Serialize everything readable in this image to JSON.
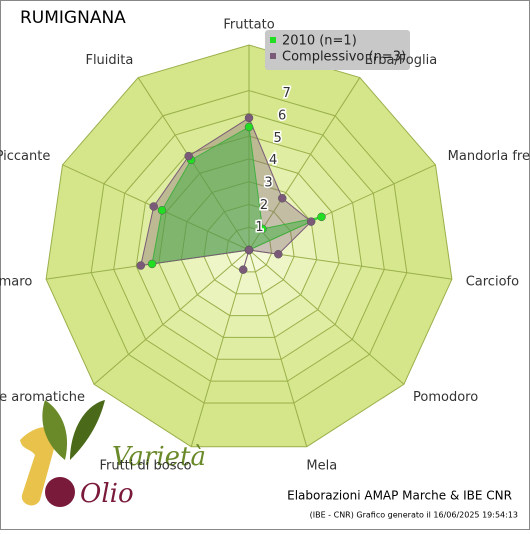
{
  "chart_data": {
    "type": "radar",
    "title": "RUMIGNANA",
    "categories": [
      "Fruttato",
      "Erba/Foglia",
      "Mandorla fresca",
      "Carciofo",
      "Pomodoro",
      "Mela",
      "Frutti di bosco",
      "Erbe aromatiche",
      "Amaro",
      "Piccante",
      "Fluidita"
    ],
    "series": [
      {
        "name": "2010 (n=1)",
        "color": "#22dd22",
        "values": [
          5.4,
          1.1,
          3.5,
          0,
          0,
          0,
          0,
          0,
          4.3,
          4.2,
          4.7
        ]
      },
      {
        "name": "Complessivo (n=3)",
        "color": "#7a5a78",
        "values": [
          5.8,
          2.7,
          3.0,
          1.3,
          0,
          0,
          0.9,
          0,
          4.8,
          4.6,
          4.9
        ]
      }
    ],
    "rlim": [
      0,
      9
    ],
    "rticks": [
      1,
      2,
      3,
      4,
      5,
      6,
      7
    ],
    "credit": "Elaborazioni AMAP Marche & IBE CNR",
    "footnote": "(IBE - CNR) Grafico generato il 16/06/2025 19:54:13",
    "logo": [
      "Varietà",
      "Olio"
    ]
  }
}
